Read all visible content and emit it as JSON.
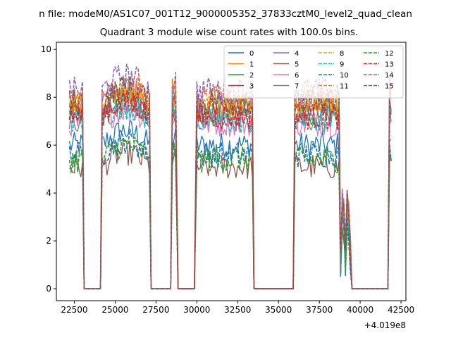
{
  "chart_data": {
    "type": "line",
    "title_top": "n file: modeM0/AS1C07_001T12_9000005352_37833cztM0_level2_quad_clean",
    "title": "Quadrant 3 module wise count rates with 100.0s bins.",
    "xlabel": "",
    "ylabel": "",
    "x_offset_label": "+4.019e8",
    "xlim": [
      21400,
      42800
    ],
    "ylim": [
      -0.5,
      10.3
    ],
    "x_ticks": [
      22500,
      25000,
      27500,
      30000,
      32500,
      35000,
      37500,
      40000,
      42500
    ],
    "x_tick_labels": [
      "22500",
      "25000",
      "27500",
      "30000",
      "32500",
      "35000",
      "37500",
      "40000",
      "42500"
    ],
    "y_ticks": [
      0,
      2,
      4,
      6,
      8,
      10
    ],
    "y_tick_labels": [
      "0",
      "2",
      "4",
      "6",
      "8",
      "10"
    ],
    "grid": false,
    "legend_position": "top-right",
    "legend_columns": 4,
    "segments": [
      {
        "start": 22200,
        "end": 23000,
        "on": true
      },
      {
        "start": 23100,
        "end": 24100,
        "on": false
      },
      {
        "start": 24200,
        "end": 27100,
        "on": true
      },
      {
        "start": 27200,
        "end": 28400,
        "on": false
      },
      {
        "start": 28500,
        "end": 28750,
        "on": true
      },
      {
        "start": 28850,
        "end": 29900,
        "on": false
      },
      {
        "start": 30000,
        "end": 33400,
        "on": true
      },
      {
        "start": 33500,
        "end": 35900,
        "on": false
      },
      {
        "start": 36000,
        "end": 38700,
        "on": true
      },
      {
        "start": 38800,
        "end": 39400,
        "on": true
      },
      {
        "start": 39500,
        "end": 41700,
        "on": false
      },
      {
        "start": 41800,
        "end": 41900,
        "on": true
      }
    ],
    "series": [
      {
        "name": "0",
        "color": "#1f77b4",
        "dash": false,
        "level": 6.0
      },
      {
        "name": "1",
        "color": "#ff7f0e",
        "dash": false,
        "level": 7.6
      },
      {
        "name": "2",
        "color": "#2ca02c",
        "dash": false,
        "level": 7.4
      },
      {
        "name": "3",
        "color": "#d62728",
        "dash": false,
        "level": 7.3
      },
      {
        "name": "4",
        "color": "#9467bd",
        "dash": false,
        "level": 7.8
      },
      {
        "name": "5",
        "color": "#8c564b",
        "dash": false,
        "level": 5.1
      },
      {
        "name": "6",
        "color": "#e377c2",
        "dash": false,
        "level": 6.9
      },
      {
        "name": "7",
        "color": "#7f7f7f",
        "dash": false,
        "level": 7.1
      },
      {
        "name": "8",
        "color": "#bcbd22",
        "dash": true,
        "level": 7.7
      },
      {
        "name": "9",
        "color": "#17becf",
        "dash": true,
        "level": 7.0
      },
      {
        "name": "10",
        "color": "#1f77b4",
        "dash": true,
        "level": 5.6
      },
      {
        "name": "11",
        "color": "#ff7f0e",
        "dash": true,
        "level": 7.9
      },
      {
        "name": "12",
        "color": "#2ca02c",
        "dash": true,
        "level": 5.4
      },
      {
        "name": "13",
        "color": "#d62728",
        "dash": true,
        "level": 7.2
      },
      {
        "name": "14",
        "color": "#9467bd",
        "dash": true,
        "level": 8.3
      },
      {
        "name": "15",
        "color": "#8c564b",
        "dash": true,
        "level": 7.8
      }
    ]
  }
}
